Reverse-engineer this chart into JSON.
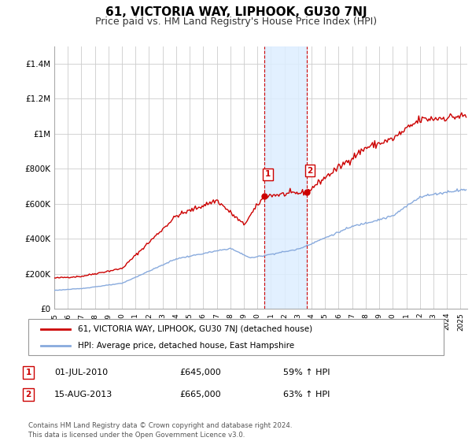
{
  "title": "61, VICTORIA WAY, LIPHOOK, GU30 7NJ",
  "subtitle": "Price paid vs. HM Land Registry's House Price Index (HPI)",
  "title_fontsize": 11,
  "subtitle_fontsize": 9,
  "ylim": [
    0,
    1500000
  ],
  "yticks": [
    0,
    200000,
    400000,
    600000,
    800000,
    1000000,
    1200000,
    1400000
  ],
  "ytick_labels": [
    "£0",
    "£200K",
    "£400K",
    "£600K",
    "£800K",
    "£1M",
    "£1.2M",
    "£1.4M"
  ],
  "xmin_year": 1995.0,
  "xmax_year": 2025.5,
  "xtick_years": [
    1995,
    1996,
    1997,
    1998,
    1999,
    2000,
    2001,
    2002,
    2003,
    2004,
    2005,
    2006,
    2007,
    2008,
    2009,
    2010,
    2011,
    2012,
    2013,
    2014,
    2015,
    2016,
    2017,
    2018,
    2019,
    2020,
    2021,
    2022,
    2023,
    2024,
    2025
  ],
  "sale1_year": 2010.5,
  "sale1_price": 645000,
  "sale1_date": "01-JUL-2010",
  "sale1_amount": "£645,000",
  "sale1_hpi": "59% ↑ HPI",
  "sale2_year": 2013.62,
  "sale2_price": 665000,
  "sale2_date": "15-AUG-2013",
  "sale2_amount": "£665,000",
  "sale2_hpi": "63% ↑ HPI",
  "property_line_color": "#cc0000",
  "hpi_line_color": "#88aadd",
  "shade_color": "#ddeeff",
  "marker_color": "#cc0000",
  "legend_property_label": "61, VICTORIA WAY, LIPHOOK, GU30 7NJ (detached house)",
  "legend_hpi_label": "HPI: Average price, detached house, East Hampshire",
  "footer": "Contains HM Land Registry data © Crown copyright and database right 2024.\nThis data is licensed under the Open Government Licence v3.0.",
  "background_color": "#ffffff",
  "grid_color": "#cccccc"
}
